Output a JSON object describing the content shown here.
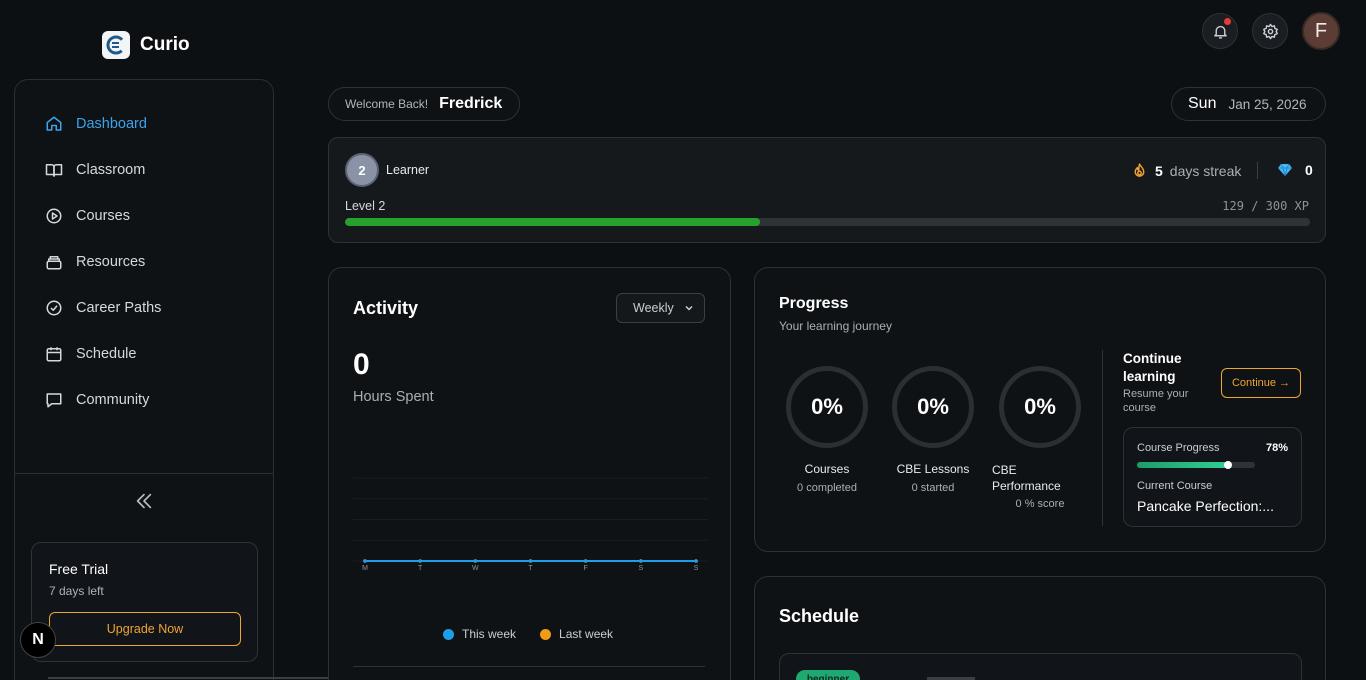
{
  "app": {
    "name": "Curio"
  },
  "sidebar": {
    "items": [
      {
        "label": "Dashboard",
        "icon": "home-icon",
        "active": true
      },
      {
        "label": "Classroom",
        "icon": "book-open-icon",
        "active": false
      },
      {
        "label": "Courses",
        "icon": "play-circle-icon",
        "active": false
      },
      {
        "label": "Resources",
        "icon": "stack-icon",
        "active": false
      },
      {
        "label": "Career Paths",
        "icon": "check-circle-icon",
        "active": false
      },
      {
        "label": "Schedule",
        "icon": "calendar-icon",
        "active": false
      },
      {
        "label": "Community",
        "icon": "message-icon",
        "active": false
      }
    ],
    "trial": {
      "title": "Free Trial",
      "subtitle": "7 days left",
      "button": "Upgrade Now"
    }
  },
  "header": {
    "avatar_initial": "F",
    "notification_dot": true
  },
  "welcome": {
    "greeting": "Welcome Back!",
    "name": "Fredrick"
  },
  "date": {
    "day": "Sun",
    "date": "Jan 25, 2026"
  },
  "level": {
    "badge": "2",
    "role": "Learner",
    "streak_count": "5",
    "streak_label": "days streak",
    "gems": "0",
    "label": "Level 2",
    "xp_text": "129 / 300 XP",
    "xp_fraction": 0.43
  },
  "activity": {
    "title": "Activity",
    "period": "Weekly",
    "value": "0",
    "value_label": "Hours Spent",
    "legend": [
      {
        "label": "This week",
        "color": "#1f9ee8"
      },
      {
        "label": "Last week",
        "color": "#f29b14"
      }
    ]
  },
  "chart_data": {
    "type": "line",
    "categories": [
      "M",
      "T",
      "W",
      "T",
      "F",
      "S",
      "S"
    ],
    "series": [
      {
        "name": "This week",
        "values": [
          0,
          0,
          0,
          0,
          0,
          0,
          0
        ],
        "color": "#1f9ee8"
      },
      {
        "name": "Last week",
        "values": [
          0,
          0,
          0,
          0,
          0,
          0,
          0
        ],
        "color": "#f29b14"
      }
    ],
    "title": "",
    "xlabel": "",
    "ylabel": "",
    "grid": true
  },
  "progress": {
    "title": "Progress",
    "subtitle": "Your learning journey",
    "rings": [
      {
        "value": "0%",
        "label": "Courses",
        "sub": "0 completed"
      },
      {
        "value": "0%",
        "label": "CBE Lessons",
        "sub": "0 started"
      },
      {
        "value": "0%",
        "label": "CBE Performance",
        "sub": "0 % score"
      }
    ],
    "continue": {
      "title": "Continue learning",
      "subtitle": "Resume your course",
      "button": "Continue →",
      "course_progress_label": "Course Progress",
      "course_progress_pct": "78%",
      "course_progress_fraction": 0.78,
      "current_course_label": "Current Course",
      "current_course": "Pancake Perfection:..."
    }
  },
  "schedule": {
    "title": "Schedule",
    "tag": "beginner"
  },
  "overlay": {
    "badge": "N"
  }
}
